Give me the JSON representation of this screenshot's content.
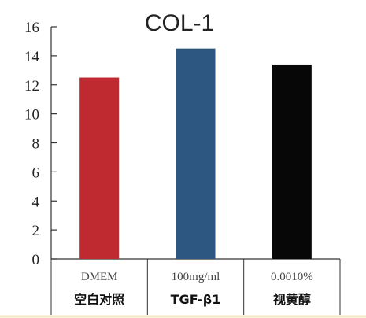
{
  "chart_data": {
    "type": "bar",
    "title": "COL-1",
    "categories": [
      "空白对照",
      "TGF-β1",
      "视黄醇"
    ],
    "category_sublabels": [
      "DMEM",
      "100mg/ml",
      "0.0010%"
    ],
    "values": [
      12.5,
      14.5,
      13.4
    ],
    "bar_colors": [
      "#bf2a30",
      "#2d5781",
      "#070707"
    ],
    "ylim": [
      0,
      16
    ],
    "yticks": [
      "0",
      "2",
      "4",
      "6",
      "8",
      "10",
      "12",
      "14",
      "16"
    ],
    "xlabel": "",
    "ylabel": "",
    "grid": false
  }
}
